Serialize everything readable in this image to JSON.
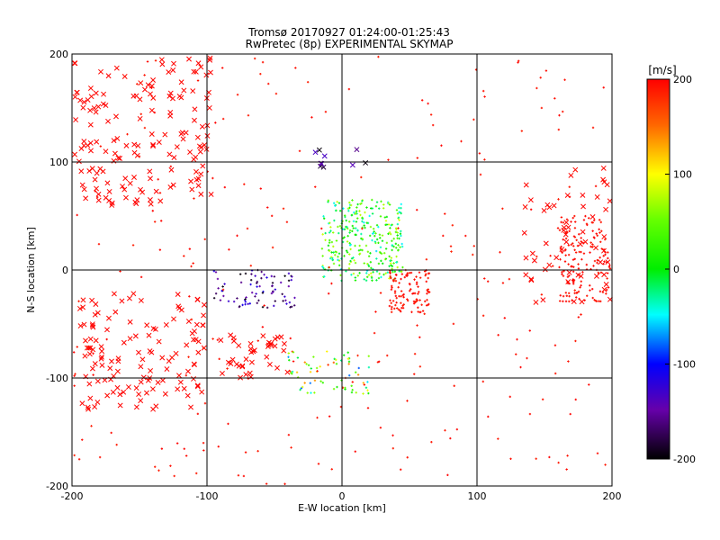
{
  "header": {
    "title_line1": "Tromsø 20170927 01:24:00-01:25:43",
    "title_line2": "RwPretec (8p) EXPERIMENTAL SKYMAP"
  },
  "chart_data": {
    "type": "scatter",
    "title": "Tromsø 20170927 01:24:00-01:25:43",
    "subtitle": "RwPretec (8p) EXPERIMENTAL SKYMAP",
    "xlabel": "E-W location [km]",
    "ylabel": "N-S location [km]",
    "xlim": [
      -200,
      200
    ],
    "ylim": [
      -200,
      200
    ],
    "x_ticks": [
      -200,
      -100,
      0,
      100,
      200
    ],
    "y_ticks": [
      -200,
      -100,
      0,
      100,
      200
    ],
    "gridlines_x": [
      -100,
      0,
      100
    ],
    "gridlines_y": [
      -100,
      0,
      100
    ],
    "colorbar": {
      "label": "[m/s]",
      "range": [
        -200,
        200
      ],
      "ticks": [
        200,
        100,
        0,
        -100,
        -200
      ]
    },
    "clusters": [
      {
        "marker": "x",
        "x": [
          -200,
          -95
        ],
        "y": [
          60,
          200
        ],
        "count": 170,
        "v": [
          195,
          200
        ]
      },
      {
        "marker": "x",
        "x": [
          -195,
          -100
        ],
        "y": [
          -130,
          -20
        ],
        "count": 130,
        "v": [
          195,
          200
        ]
      },
      {
        "marker": "x",
        "x": [
          -90,
          -40
        ],
        "y": [
          -100,
          -60
        ],
        "count": 40,
        "v": [
          195,
          200
        ]
      },
      {
        "marker": "x",
        "x": [
          135,
          200
        ],
        "y": [
          -30,
          100
        ],
        "count": 60,
        "v": [
          195,
          200
        ]
      },
      {
        "marker": "+",
        "x": [
          160,
          200
        ],
        "y": [
          -30,
          50
        ],
        "count": 160,
        "v": [
          190,
          200
        ]
      },
      {
        "marker": "+",
        "x": [
          -15,
          45
        ],
        "y": [
          -10,
          65
        ],
        "count": 320,
        "v": [
          -60,
          90
        ]
      },
      {
        "marker": "+",
        "x": [
          35,
          65
        ],
        "y": [
          -40,
          0
        ],
        "count": 110,
        "v": [
          185,
          200
        ]
      },
      {
        "marker": "+",
        "x": [
          -95,
          -35
        ],
        "y": [
          -35,
          0
        ],
        "count": 80,
        "v": [
          -200,
          -110
        ]
      },
      {
        "marker": "+",
        "x": [
          -40,
          20
        ],
        "y": [
          -115,
          -75
        ],
        "count": 70,
        "v": [
          -90,
          200
        ]
      },
      {
        "marker": "+",
        "x": [
          -200,
          200
        ],
        "y": [
          -200,
          200
        ],
        "count": 260,
        "v": [
          185,
          200
        ]
      },
      {
        "marker": "x",
        "x": [
          -20,
          20
        ],
        "y": [
          95,
          112
        ],
        "count": 10,
        "v": [
          -200,
          -130
        ]
      }
    ]
  }
}
